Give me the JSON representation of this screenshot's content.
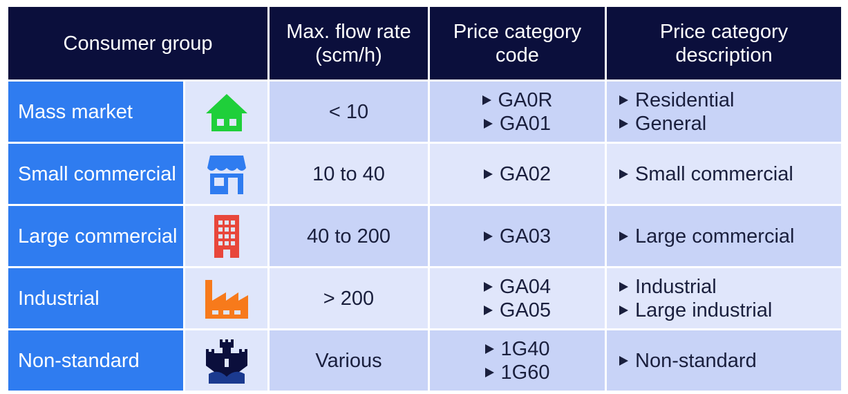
{
  "table": {
    "header": [
      "Consumer group",
      "Max. flow rate (scm/h)",
      "Price category code",
      "Price category description"
    ],
    "rows": [
      {
        "group": "Mass market",
        "flow": "< 10",
        "codes": [
          "GA0R",
          "GA01"
        ],
        "descriptions": [
          "Residential",
          "General"
        ]
      },
      {
        "group": "Small commercial",
        "flow": "10 to 40",
        "codes": [
          "GA02"
        ],
        "descriptions": [
          "Small commercial"
        ]
      },
      {
        "group": "Large commercial",
        "flow": "40 to 200",
        "codes": [
          "GA03"
        ],
        "descriptions": [
          "Large commercial"
        ]
      },
      {
        "group": "Industrial",
        "flow": "> 200",
        "codes": [
          "GA04",
          "GA05"
        ],
        "descriptions": [
          "Industrial",
          "Large industrial"
        ]
      },
      {
        "group": "Non-standard",
        "flow": "Various",
        "codes": [
          "1G40",
          "1G60"
        ],
        "descriptions": [
          "Non-standard"
        ]
      }
    ]
  }
}
